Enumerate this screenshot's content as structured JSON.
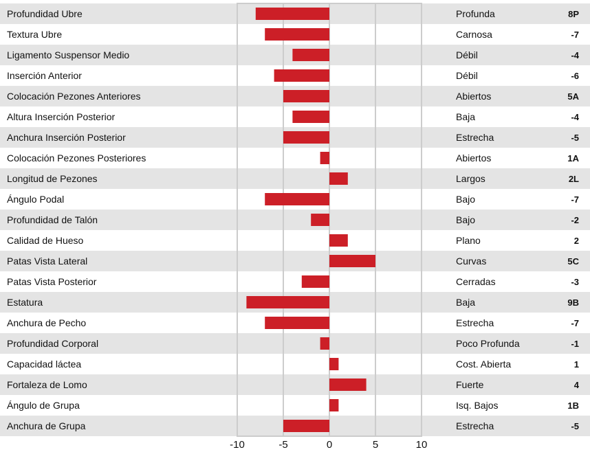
{
  "chart_data": {
    "type": "bar",
    "orientation": "horizontal",
    "xlim": [
      -10,
      10
    ],
    "xticks": [
      "-10",
      "-5",
      "0",
      "5",
      "10"
    ],
    "grid": true,
    "colors": {
      "bar": "#cc1f27",
      "row_shade": "#e4e4e4",
      "grid": "#cccccc"
    },
    "rows": [
      {
        "trait": "Profundidad Ubre",
        "value": -8,
        "descriptor": "Profunda",
        "score": "8P"
      },
      {
        "trait": "Textura Ubre",
        "value": -7,
        "descriptor": "Carnosa",
        "score": "-7"
      },
      {
        "trait": "Ligamento Suspensor Medio",
        "value": -4,
        "descriptor": "Débil",
        "score": "-4"
      },
      {
        "trait": "Inserción Anterior",
        "value": -6,
        "descriptor": "Débil",
        "score": "-6"
      },
      {
        "trait": "Colocación Pezones Anteriores",
        "value": -5,
        "descriptor": "Abiertos",
        "score": "5A"
      },
      {
        "trait": "Altura Inserción Posterior",
        "value": -4,
        "descriptor": "Baja",
        "score": "-4"
      },
      {
        "trait": "Anchura Inserción Posterior",
        "value": -5,
        "descriptor": "Estrecha",
        "score": "-5"
      },
      {
        "trait": "Colocación Pezones Posteriores",
        "value": -1,
        "descriptor": "Abiertos",
        "score": "1A"
      },
      {
        "trait": "Longitud de Pezones",
        "value": 2,
        "descriptor": "Largos",
        "score": "2L"
      },
      {
        "trait": "Ángulo Podal",
        "value": -7,
        "descriptor": "Bajo",
        "score": "-7"
      },
      {
        "trait": "Profundidad de Talón",
        "value": -2,
        "descriptor": "Bajo",
        "score": "-2"
      },
      {
        "trait": "Calidad de Hueso",
        "value": 2,
        "descriptor": "Plano",
        "score": "2"
      },
      {
        "trait": "Patas Vista Lateral",
        "value": 5,
        "descriptor": "Curvas",
        "score": "5C"
      },
      {
        "trait": "Patas Vista Posterior",
        "value": -3,
        "descriptor": "Cerradas",
        "score": "-3"
      },
      {
        "trait": "Estatura",
        "value": -9,
        "descriptor": "Baja",
        "score": "9B"
      },
      {
        "trait": "Anchura de Pecho",
        "value": -7,
        "descriptor": "Estrecha",
        "score": "-7"
      },
      {
        "trait": "Profundidad Corporal",
        "value": -1,
        "descriptor": "Poco Profunda",
        "score": "-1"
      },
      {
        "trait": "Capacidad láctea",
        "value": 1,
        "descriptor": "Cost. Abierta",
        "score": "1"
      },
      {
        "trait": "Fortaleza de Lomo",
        "value": 4,
        "descriptor": "Fuerte",
        "score": "4"
      },
      {
        "trait": "Ángulo de Grupa",
        "value": 1,
        "descriptor": "Isq. Bajos",
        "score": "1B"
      },
      {
        "trait": "Anchura de Grupa",
        "value": -5,
        "descriptor": "Estrecha",
        "score": "-5"
      }
    ]
  }
}
